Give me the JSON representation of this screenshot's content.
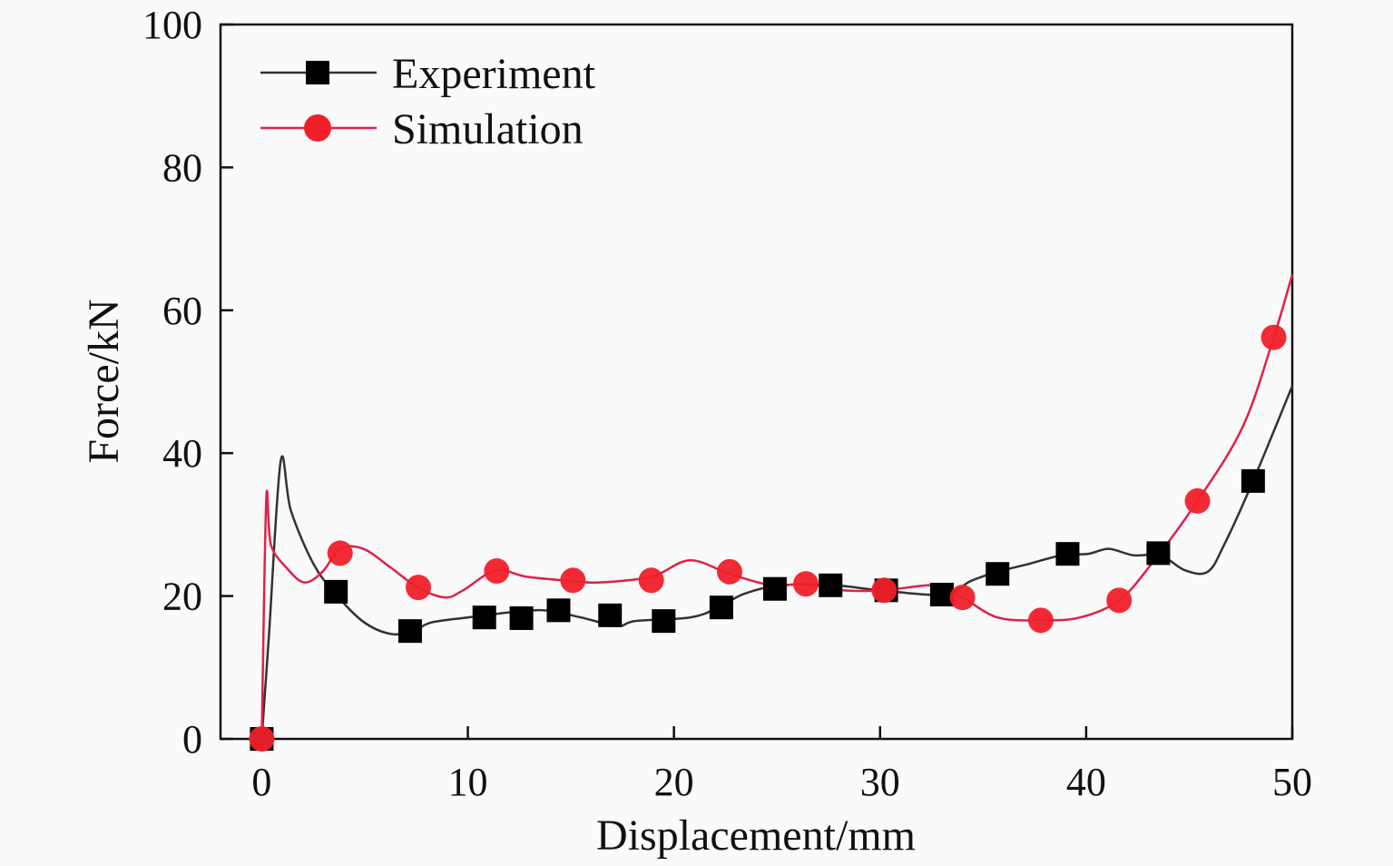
{
  "chart_data": {
    "type": "line",
    "title": "",
    "xlabel": "Displacement/mm",
    "ylabel": "Force/kN",
    "xlim": [
      -2,
      50
    ],
    "ylim": [
      0,
      100
    ],
    "xticks": [
      "0",
      "10",
      "20",
      "30",
      "40",
      "50"
    ],
    "xtick_values": [
      0,
      10,
      20,
      30,
      40,
      50
    ],
    "yticks": [
      "0",
      "20",
      "40",
      "60",
      "80",
      "100"
    ],
    "ytick_values": [
      0,
      20,
      40,
      60,
      80,
      100
    ],
    "grid": false,
    "legend_position": "top-left",
    "series": [
      {
        "name": "Experiment",
        "color": "#333333",
        "marker_color": "#000000",
        "marker": "square",
        "curve": [
          [
            0,
            0
          ],
          [
            0.35,
            14.5
          ],
          [
            0.92,
            38.9
          ],
          [
            1.41,
            32.0
          ],
          [
            2.51,
            24.5
          ],
          [
            3.61,
            20.2
          ],
          [
            4.93,
            16.4
          ],
          [
            6.25,
            14.7
          ],
          [
            7.35,
            15.1
          ],
          [
            8.23,
            16.3
          ],
          [
            9.99,
            17.0
          ],
          [
            11.97,
            17.7
          ],
          [
            13.73,
            18.0
          ],
          [
            15.49,
            17.0
          ],
          [
            17.25,
            15.8
          ],
          [
            18.13,
            16.5
          ],
          [
            20.77,
            17.0
          ],
          [
            22.1,
            18.3
          ],
          [
            23.4,
            20.3
          ],
          [
            25.2,
            21.5
          ],
          [
            27.8,
            21.5
          ],
          [
            30.0,
            20.8
          ],
          [
            33.1,
            20.2
          ],
          [
            34.4,
            22.1
          ],
          [
            35.7,
            23.4
          ],
          [
            37.1,
            24.4
          ],
          [
            38.8,
            25.7
          ],
          [
            40.1,
            25.9
          ],
          [
            41.1,
            26.6
          ],
          [
            42.3,
            25.7
          ],
          [
            43.6,
            25.7
          ],
          [
            44.8,
            23.6
          ],
          [
            45.9,
            23.4
          ],
          [
            46.7,
            27.2
          ],
          [
            48.1,
            36.1
          ],
          [
            50,
            49.4
          ]
        ],
        "markers": [
          [
            0,
            0
          ],
          [
            3.6,
            20.6
          ],
          [
            7.2,
            15.1
          ],
          [
            10.8,
            17.0
          ],
          [
            12.6,
            16.9
          ],
          [
            14.4,
            18.0
          ],
          [
            16.9,
            17.3
          ],
          [
            19.5,
            16.5
          ],
          [
            22.3,
            18.4
          ],
          [
            24.9,
            21.0
          ],
          [
            27.6,
            21.5
          ],
          [
            30.3,
            20.8
          ],
          [
            33.0,
            20.2
          ],
          [
            35.7,
            23.1
          ],
          [
            39.1,
            25.9
          ],
          [
            43.5,
            26.0
          ],
          [
            48.1,
            36.1
          ]
        ]
      },
      {
        "name": "Simulation",
        "color": "#e0204a",
        "marker_color": "#f0202a",
        "marker": "circle",
        "curve": [
          [
            0,
            0
          ],
          [
            0.22,
            33.5
          ],
          [
            0.44,
            27.2
          ],
          [
            1.19,
            24.0
          ],
          [
            2.07,
            21.9
          ],
          [
            2.95,
            23.4
          ],
          [
            3.8,
            26.6
          ],
          [
            4.93,
            26.6
          ],
          [
            6.25,
            24.0
          ],
          [
            7.57,
            21.2
          ],
          [
            8.89,
            19.8
          ],
          [
            9.77,
            20.8
          ],
          [
            11.35,
            23.6
          ],
          [
            12.85,
            22.7
          ],
          [
            15.1,
            22.1
          ],
          [
            16.37,
            21.9
          ],
          [
            18.9,
            22.7
          ],
          [
            20.77,
            25.0
          ],
          [
            22.7,
            23.1
          ],
          [
            24.74,
            21.5
          ],
          [
            26.4,
            21.7
          ],
          [
            28.2,
            20.8
          ],
          [
            30.2,
            20.8
          ],
          [
            32.7,
            21.5
          ],
          [
            34.0,
            19.8
          ],
          [
            35.7,
            17.0
          ],
          [
            37.8,
            16.6
          ],
          [
            39.7,
            17.0
          ],
          [
            41.6,
            19.4
          ],
          [
            43.2,
            24.6
          ],
          [
            45.4,
            33.3
          ],
          [
            47.6,
            43.7
          ],
          [
            49.1,
            56.2
          ],
          [
            50,
            65
          ]
        ],
        "markers": [
          [
            0,
            0
          ],
          [
            3.8,
            26.0
          ],
          [
            7.6,
            21.2
          ],
          [
            11.4,
            23.5
          ],
          [
            15.1,
            22.2
          ],
          [
            18.9,
            22.2
          ],
          [
            22.7,
            23.4
          ],
          [
            26.4,
            21.7
          ],
          [
            30.2,
            20.8
          ],
          [
            34.0,
            19.8
          ],
          [
            37.8,
            16.6
          ],
          [
            41.6,
            19.4
          ],
          [
            45.4,
            33.3
          ],
          [
            49.1,
            56.2
          ]
        ]
      }
    ]
  }
}
